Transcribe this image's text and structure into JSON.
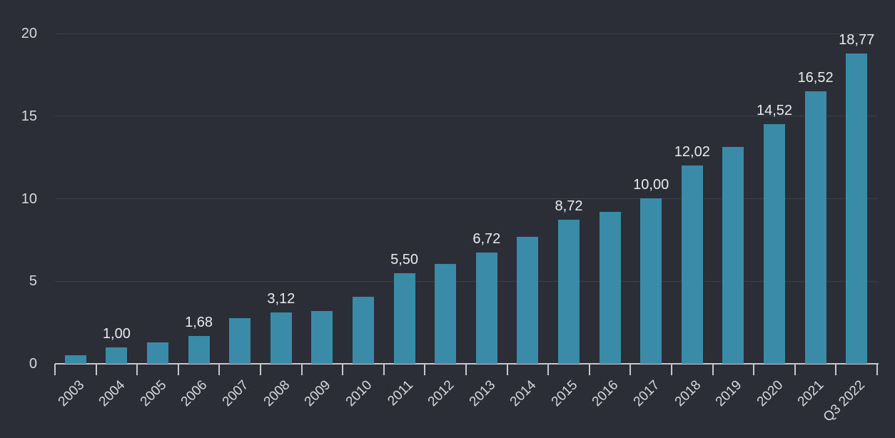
{
  "chart": {
    "background": "#2b2e36",
    "bar_color": "#3a8ba8",
    "grid_color": "#3b3f48",
    "axis_color": "#c6c8ca",
    "tick_label_color": "#d6d8da",
    "value_label_color": "#eaebed"
  },
  "chart_data": {
    "type": "bar",
    "title": "",
    "xlabel": "",
    "ylabel": "",
    "categories": [
      "2003",
      "2004",
      "2005",
      "2006",
      "2007",
      "2008",
      "2009",
      "2010",
      "2011",
      "2012",
      "2013",
      "2014",
      "2015",
      "2016",
      "2017",
      "2018",
      "2019",
      "2020",
      "2021",
      "Q3 2022"
    ],
    "values": [
      0.5,
      1.0,
      1.3,
      1.68,
      2.75,
      3.12,
      3.2,
      4.05,
      5.5,
      6.05,
      6.72,
      7.7,
      8.72,
      9.2,
      10.0,
      12.02,
      13.15,
      14.52,
      16.52,
      18.77
    ],
    "bar_labels": [
      "",
      "1,00",
      "",
      "1,68",
      "",
      "3,12",
      "",
      "",
      "5,50",
      "",
      "6,72",
      "",
      "8,72",
      "",
      "10,00",
      "12,02",
      "",
      "14,52",
      "16,52",
      "18,77"
    ],
    "ylim": [
      0,
      20
    ],
    "yticks": [
      0,
      5,
      10,
      15,
      20
    ],
    "grid": true,
    "legend": null,
    "decimal_separator": ","
  }
}
